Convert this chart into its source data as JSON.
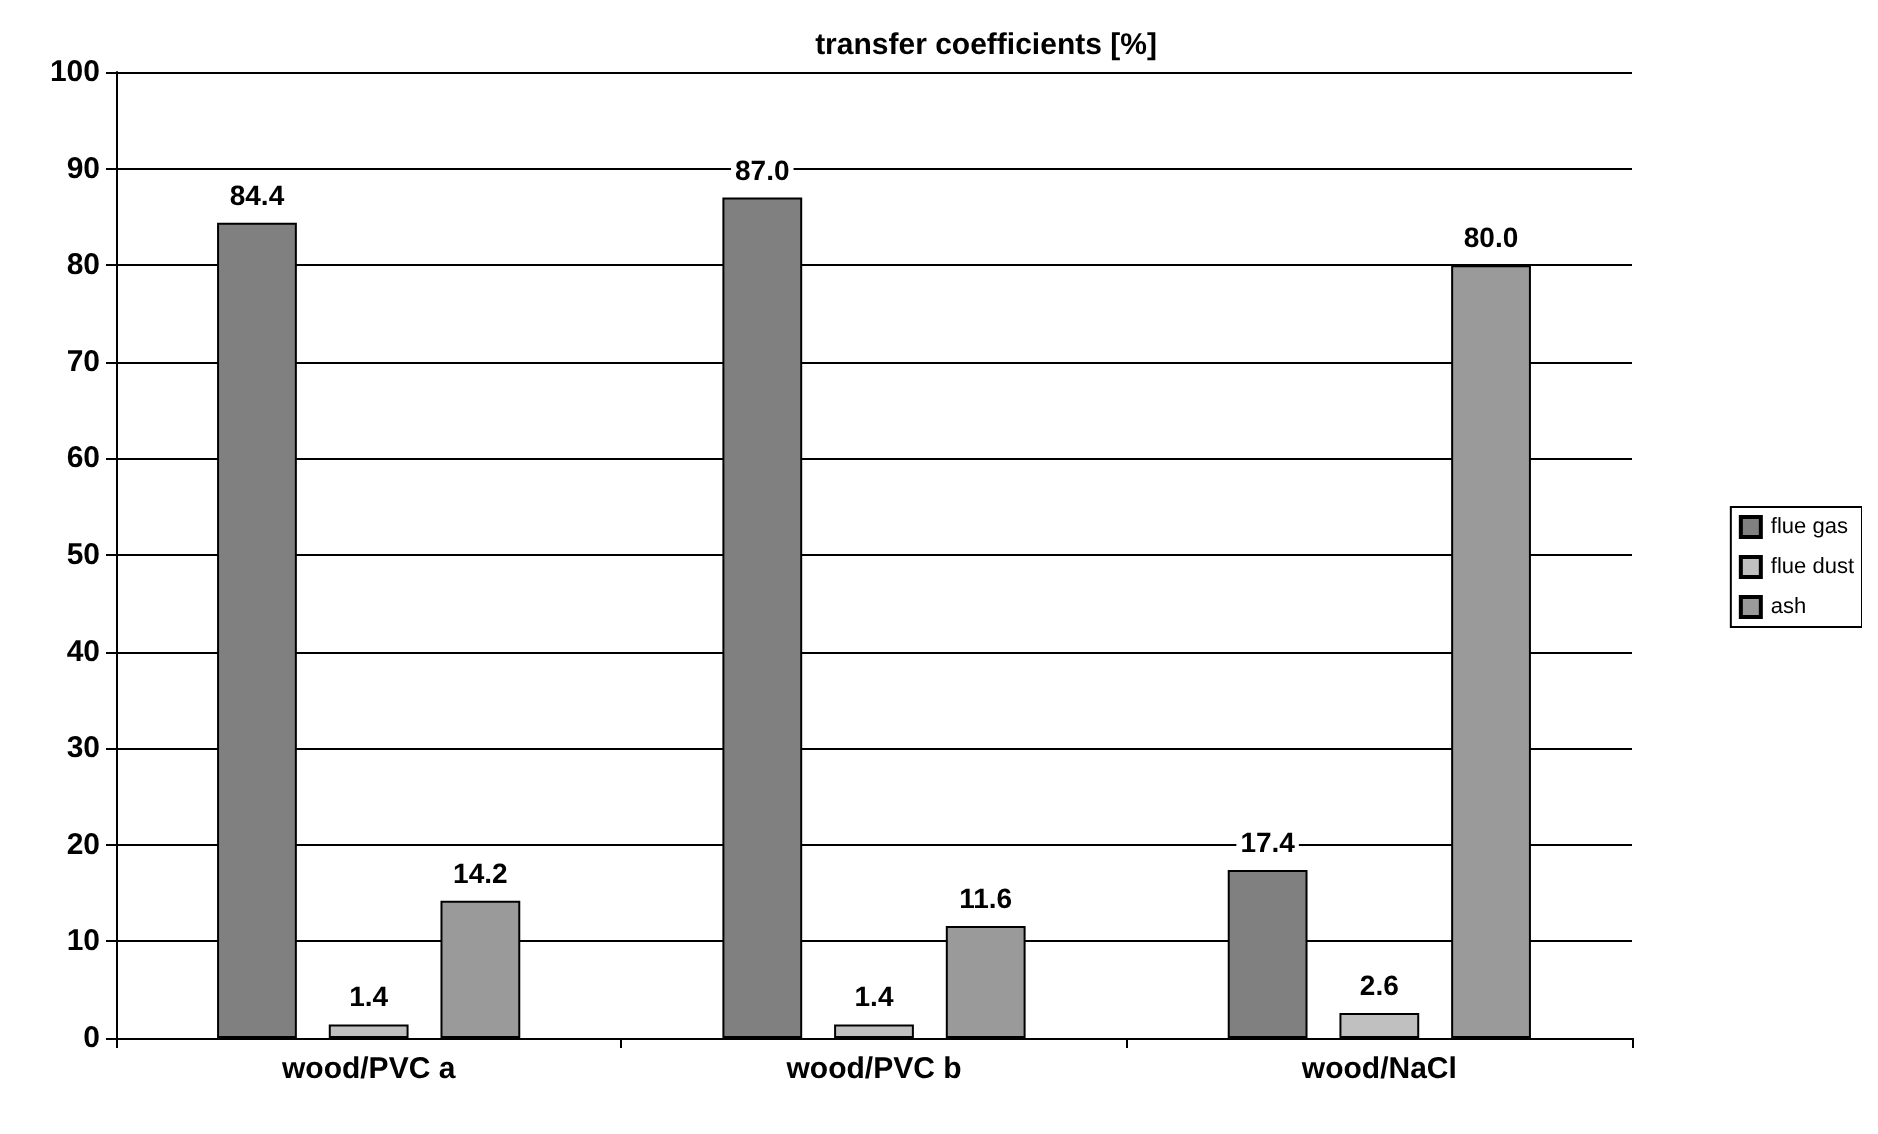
{
  "chart_data": {
    "type": "bar",
    "title": "transfer coefficients [%]",
    "categories": [
      "wood/PVC a",
      "wood/PVC b",
      "wood/NaCl"
    ],
    "series": [
      {
        "name": "flue gas",
        "color": "#808080",
        "values": [
          84.4,
          87.0,
          17.4
        ],
        "value_labels": [
          "84.4",
          "87.0",
          "17.4"
        ]
      },
      {
        "name": "flue dust",
        "color": "#c0c0c0",
        "values": [
          1.4,
          1.4,
          2.6
        ],
        "value_labels": [
          "1.4",
          "1.4",
          "2.6"
        ]
      },
      {
        "name": "ash",
        "color": "#9a9a9a",
        "values": [
          14.2,
          11.6,
          80.0
        ],
        "value_labels": [
          "14.2",
          "11.6",
          "80.0"
        ]
      }
    ],
    "ylim": [
      0,
      100
    ],
    "yticks": [
      0,
      10,
      20,
      30,
      40,
      50,
      60,
      70,
      80,
      90,
      100
    ],
    "grid": "y",
    "legend": "right"
  }
}
